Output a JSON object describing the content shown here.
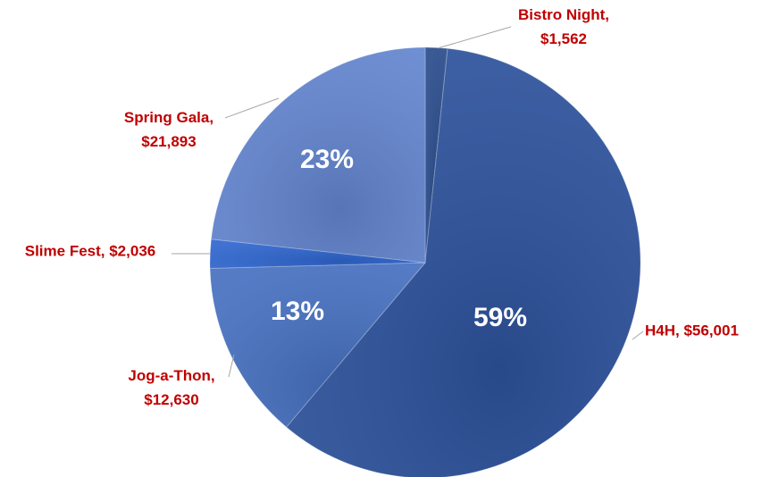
{
  "chart_data": {
    "type": "pie",
    "categories_hidden": false,
    "values": [
      1562,
      56001,
      12630,
      2036,
      21893
    ],
    "value_labels": [
      "Bistro Night, $1,562",
      "H4H, $56,001",
      "Jog-a-Thon, $12,630",
      "Slime Fest, $2,036",
      "Spring Gala, $21,893"
    ],
    "percent_labels": [
      null,
      "59%",
      "13%",
      null,
      "23%"
    ],
    "colors": [
      "#2a4c8c",
      "#2d529c",
      "#4670c0",
      "#2f66cf",
      "#6385cf"
    ],
    "label_color": "#c00000"
  }
}
